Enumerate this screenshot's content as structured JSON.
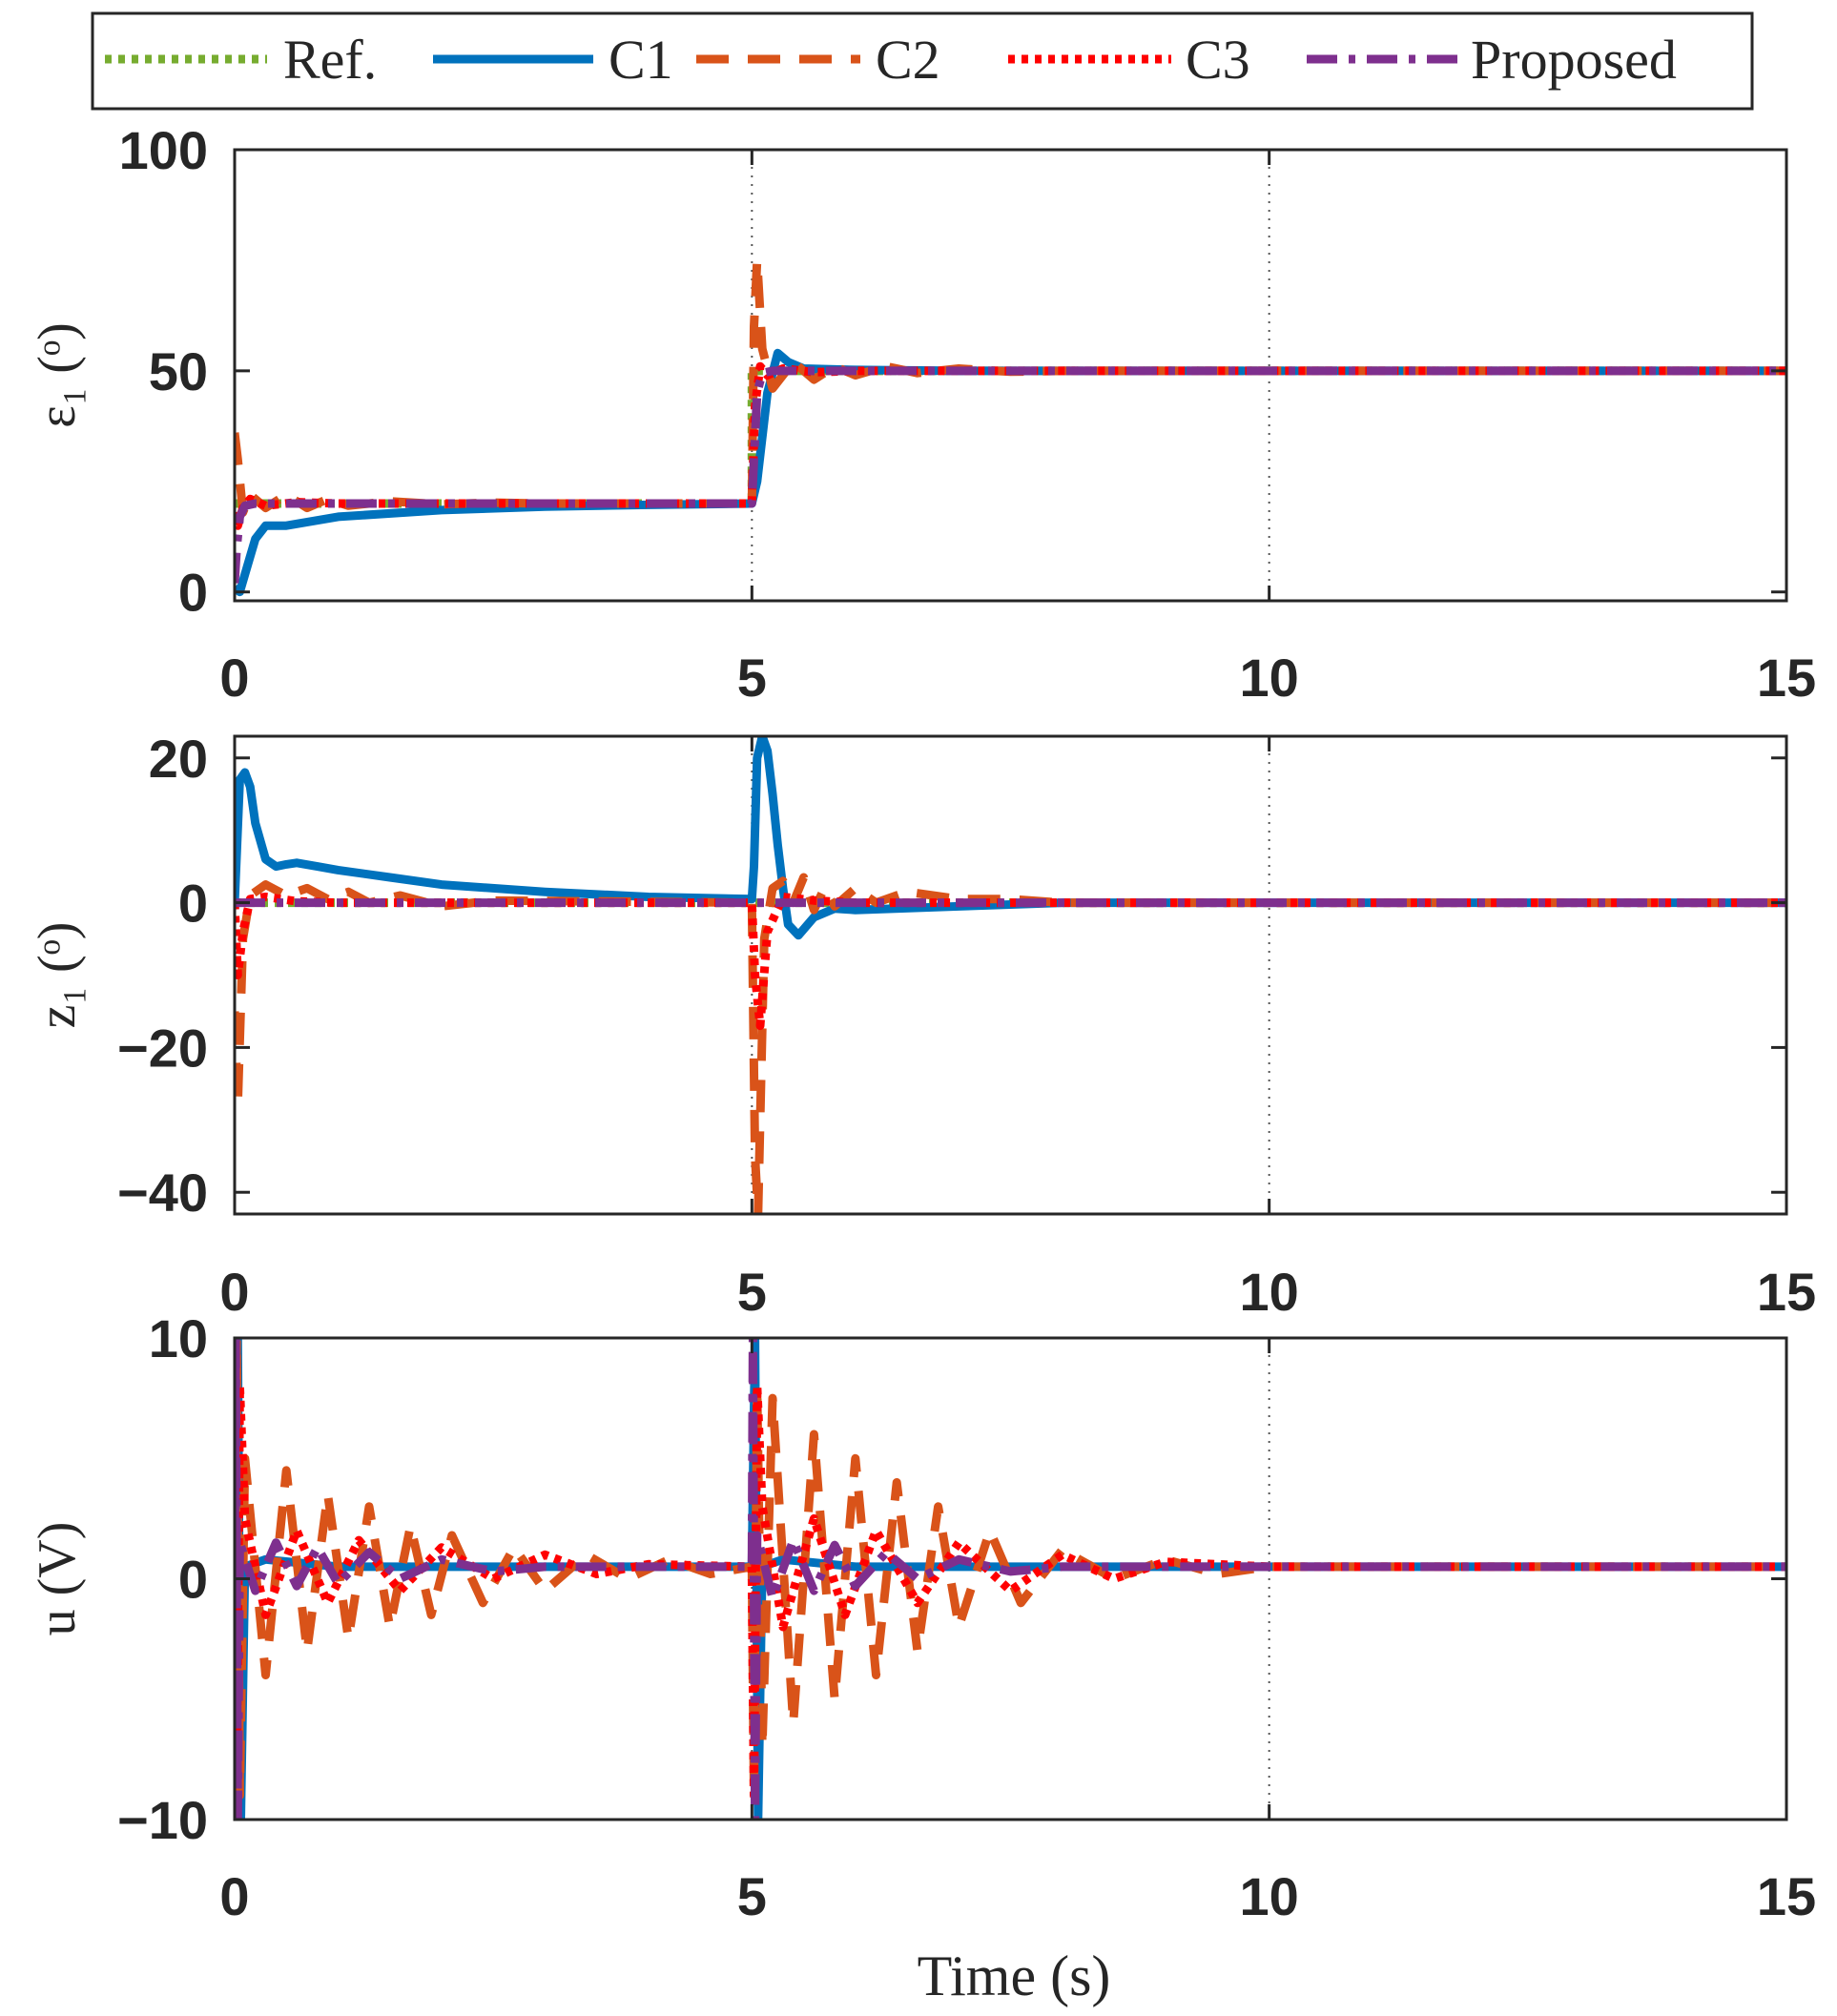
{
  "legend": {
    "entries": [
      {
        "label": "Ref.",
        "color": "#77AC30",
        "dash": "dot"
      },
      {
        "label": "C1",
        "color": "#0072BD",
        "dash": "solid"
      },
      {
        "label": "C2",
        "color": "#D95319",
        "dash": "dash"
      },
      {
        "label": "C3",
        "color": "#FF0000",
        "dash": "dot"
      },
      {
        "label": "Proposed",
        "color": "#7E2F8E",
        "dash": "dashdot"
      }
    ]
  },
  "chart_data": [
    {
      "type": "line",
      "ylabel": "ε₁ (ᵒ)",
      "xlim": [
        0,
        15
      ],
      "ylim": [
        -2,
        100
      ],
      "xticks": [
        "0",
        "5",
        "10",
        "15"
      ],
      "yticks": [
        {
          "v": 0,
          "t": "0"
        },
        {
          "v": 50,
          "t": "50"
        },
        {
          "v": 100,
          "t": "100"
        }
      ],
      "vlines": [
        5,
        10
      ],
      "series": [
        {
          "name": "Ref.",
          "x": [
            0,
            5,
            5,
            15
          ],
          "y": [
            20,
            20,
            50,
            50
          ]
        },
        {
          "name": "C1",
          "x": [
            0,
            0.05,
            0.1,
            0.2,
            0.3,
            0.5,
            1,
            2,
            3,
            4,
            5,
            5.05,
            5.15,
            5.25,
            5.35,
            5.5,
            6,
            7,
            8,
            15
          ],
          "y": [
            1,
            0,
            4,
            12,
            15,
            15,
            17,
            18.5,
            19.3,
            19.7,
            20,
            25,
            45,
            54,
            52,
            50.5,
            50.2,
            50,
            50,
            50
          ]
        },
        {
          "name": "C2",
          "x": [
            0,
            0.03,
            0.08,
            0.15,
            0.3,
            0.5,
            0.7,
            0.9,
            1.1,
            1.5,
            2,
            2.5,
            3,
            5,
            5.02,
            5.05,
            5.1,
            5.2,
            5.4,
            5.6,
            5.8,
            6,
            6.3,
            6.6,
            7,
            7.5,
            8,
            15
          ],
          "y": [
            36,
            30,
            18,
            22,
            19,
            22,
            19,
            21,
            19.5,
            20.5,
            19.8,
            20.2,
            20,
            20,
            60,
            75,
            55,
            46,
            52,
            48,
            51,
            49,
            51,
            49.5,
            50.5,
            49.8,
            50,
            50
          ]
        },
        {
          "name": "C3",
          "x": [
            0,
            0.03,
            0.08,
            0.15,
            0.3,
            0.6,
            1,
            5,
            5.03,
            5.08,
            5.15,
            5.3,
            5.6,
            6,
            15
          ],
          "y": [
            18,
            15,
            19,
            21,
            19.5,
            20.3,
            20,
            20,
            42,
            51,
            49,
            50.5,
            49.7,
            50,
            50
          ]
        },
        {
          "name": "Proposed",
          "x": [
            0,
            0.02,
            0.05,
            0.1,
            0.2,
            0.5,
            5,
            5.02,
            5.05,
            5.1,
            5.2,
            5.5,
            15
          ],
          "y": [
            2,
            10,
            17,
            19.5,
            20,
            20,
            20,
            30,
            45,
            49.5,
            50,
            50,
            50
          ]
        }
      ]
    },
    {
      "type": "line",
      "ylabel": "z₁ (ᵒ)",
      "xlim": [
        0,
        15
      ],
      "ylim": [
        -43,
        23
      ],
      "xticks": [
        "0",
        "5",
        "10",
        "15"
      ],
      "yticks": [
        {
          "v": -40,
          "t": "−40"
        },
        {
          "v": -20,
          "t": "−20"
        },
        {
          "v": 0,
          "t": "0"
        },
        {
          "v": 20,
          "t": "20"
        }
      ],
      "vlines": [
        5,
        10
      ],
      "series": [
        {
          "name": "Ref.",
          "x": [
            0,
            15
          ],
          "y": [
            0,
            0
          ]
        },
        {
          "name": "C1",
          "x": [
            0,
            0.05,
            0.1,
            0.15,
            0.2,
            0.3,
            0.4,
            0.5,
            0.6,
            0.8,
            1,
            1.5,
            2,
            3,
            4,
            5,
            5.02,
            5.05,
            5.1,
            5.15,
            5.2,
            5.25,
            5.3,
            5.35,
            5.45,
            5.6,
            5.8,
            6,
            7,
            8,
            15
          ],
          "y": [
            0,
            17,
            18,
            16,
            11,
            6,
            5,
            5.3,
            5.5,
            5,
            4.5,
            3.5,
            2.5,
            1.5,
            0.8,
            0.5,
            5,
            20,
            23,
            21,
            15,
            8,
            2,
            -3,
            -4.5,
            -2,
            -0.8,
            -1,
            -0.5,
            0,
            0
          ]
        },
        {
          "name": "C2",
          "x": [
            0,
            0.03,
            0.08,
            0.15,
            0.3,
            0.5,
            0.7,
            0.9,
            1.1,
            1.3,
            1.6,
            2,
            2.5,
            5,
            5.03,
            5.06,
            5.12,
            5.2,
            5.3,
            5.4,
            5.5,
            5.6,
            5.7,
            5.8,
            6,
            6.2,
            6.5,
            7,
            7.5,
            8,
            15
          ],
          "y": [
            -15,
            -28,
            -5,
            1,
            2.5,
            1,
            2,
            0.5,
            1.5,
            0,
            1,
            -0.5,
            0.3,
            0,
            -35,
            -43,
            -5,
            2,
            3,
            0,
            3.5,
            -1,
            2,
            -0.5,
            2,
            0,
            1.5,
            0.5,
            0.5,
            0,
            0
          ]
        },
        {
          "name": "C3",
          "x": [
            0,
            0.03,
            0.08,
            0.15,
            0.3,
            0.6,
            1,
            5,
            5.03,
            5.08,
            5.15,
            5.3,
            5.6,
            6,
            15
          ],
          "y": [
            0,
            -10,
            -4,
            0.5,
            0.8,
            0.2,
            0,
            0,
            -10,
            -17,
            -4,
            0.8,
            0.3,
            0,
            0
          ]
        },
        {
          "name": "Proposed",
          "x": [
            0,
            0.05,
            0.15,
            0.3,
            15
          ],
          "y": [
            0,
            0,
            0,
            0,
            0
          ]
        }
      ]
    },
    {
      "type": "line",
      "ylabel": "u (V)",
      "xlabel": "Time (s)",
      "xlim": [
        0,
        15
      ],
      "ylim": [
        -10,
        10
      ],
      "xticks": [
        "0",
        "5",
        "10",
        "15"
      ],
      "yticks": [
        {
          "v": -10,
          "t": "−10"
        },
        {
          "v": 0,
          "t": "0"
        },
        {
          "v": 10,
          "t": "10"
        }
      ],
      "vlines": [
        5,
        10
      ],
      "series": [
        {
          "name": "C1",
          "x": [
            0,
            0.03,
            0.06,
            0.1,
            0.3,
            1,
            5,
            5.03,
            5.06,
            5.1,
            5.3,
            6,
            15
          ],
          "y": [
            0,
            10,
            -10,
            0.5,
            0.8,
            0.5,
            0.5,
            10,
            -10,
            0.5,
            0.8,
            0.5,
            0.5
          ]
        },
        {
          "name": "C2",
          "x": [
            0,
            0.02,
            0.05,
            0.1,
            0.3,
            0.5,
            0.7,
            0.9,
            1.1,
            1.3,
            1.5,
            1.7,
            1.9,
            2.1,
            2.4,
            2.7,
            3,
            3.4,
            3.8,
            4.2,
            4.6,
            5,
            5.02,
            5.05,
            5.1,
            5.2,
            5.4,
            5.6,
            5.8,
            6,
            6.2,
            6.4,
            6.6,
            6.8,
            7,
            7.3,
            7.6,
            8,
            8.5,
            9,
            9.5,
            10,
            11,
            12,
            13,
            14,
            15
          ],
          "y": [
            0,
            10,
            -9,
            5,
            -4,
            4.5,
            -3,
            3.5,
            -2.5,
            3,
            -2,
            2.2,
            -1.5,
            1.8,
            -1,
            1.3,
            -0.5,
            1,
            0,
            0.8,
            0.2,
            0.5,
            -9,
            8,
            -7,
            7.5,
            -6,
            6,
            -5,
            5,
            -4,
            4,
            -3,
            3,
            -2,
            2,
            -1,
            1.2,
            0,
            0.8,
            0.2,
            0.5,
            0.5,
            0.5,
            0.5,
            0.5,
            0.5
          ]
        },
        {
          "name": "C3",
          "x": [
            0,
            0.02,
            0.05,
            0.1,
            0.3,
            0.6,
            0.9,
            1.2,
            1.6,
            2,
            2.5,
            3,
            3.5,
            4,
            5,
            5.02,
            5.05,
            5.1,
            5.3,
            5.6,
            5.9,
            6.2,
            6.6,
            7,
            7.5,
            8,
            8.5,
            9,
            10,
            15
          ],
          "y": [
            0,
            -9,
            8,
            2.5,
            -1.5,
            2,
            -1,
            1.6,
            -0.5,
            1.3,
            0,
            1,
            0.2,
            0.6,
            0.5,
            -9,
            8,
            3,
            -2,
            2.5,
            -1.5,
            2,
            -1,
            1.5,
            -0.5,
            1,
            0,
            0.7,
            0.5,
            0.5
          ]
        },
        {
          "name": "Proposed",
          "x": [
            0,
            0.01,
            0.03,
            0.05,
            0.2,
            0.4,
            0.6,
            0.8,
            1,
            1.3,
            1.6,
            2,
            2.5,
            3,
            5,
            5.01,
            5.03,
            5.05,
            5.2,
            5.4,
            5.6,
            5.8,
            6,
            6.3,
            6.6,
            7,
            7.5,
            8,
            15
          ],
          "y": [
            0,
            10,
            -10,
            1.5,
            -0.5,
            1.5,
            -0.3,
            1.3,
            -0.2,
            1.1,
            0,
            0.8,
            0.3,
            0.5,
            0.5,
            10,
            -10,
            1.8,
            -0.8,
            1.6,
            -0.5,
            1.4,
            -0.3,
            1.1,
            0,
            0.8,
            0.3,
            0.5,
            0.5
          ]
        }
      ]
    }
  ]
}
